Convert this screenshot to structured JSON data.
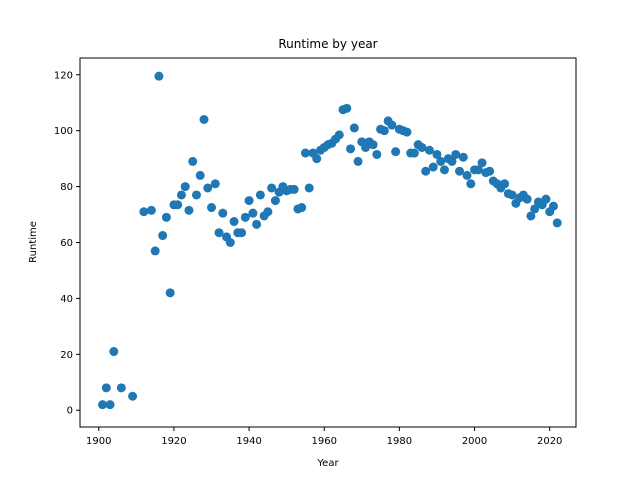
{
  "chart_data": {
    "type": "scatter",
    "title": "Runtime by year",
    "xlabel": "Year",
    "ylabel": "Runtime",
    "xlim": [
      1895,
      2027
    ],
    "ylim": [
      -6,
      126
    ],
    "xticks": [
      1900,
      1920,
      1940,
      1960,
      1980,
      2000,
      2020
    ],
    "yticks": [
      0,
      20,
      40,
      60,
      80,
      100,
      120
    ],
    "grid": false,
    "marker_color": "#1f77b4",
    "points": [
      [
        1901,
        2
      ],
      [
        1902,
        8
      ],
      [
        1903,
        2
      ],
      [
        1904,
        21
      ],
      [
        1906,
        8
      ],
      [
        1909,
        5
      ],
      [
        1912,
        71
      ],
      [
        1914,
        71.5
      ],
      [
        1915,
        57
      ],
      [
        1916,
        119.5
      ],
      [
        1917,
        62.5
      ],
      [
        1918,
        69
      ],
      [
        1919,
        42
      ],
      [
        1920,
        73.5
      ],
      [
        1921,
        73.5
      ],
      [
        1922,
        77
      ],
      [
        1923,
        80
      ],
      [
        1924,
        71.5
      ],
      [
        1925,
        89
      ],
      [
        1926,
        77
      ],
      [
        1927,
        84
      ],
      [
        1928,
        104
      ],
      [
        1929,
        79.5
      ],
      [
        1930,
        72.5
      ],
      [
        1931,
        81
      ],
      [
        1932,
        63.5
      ],
      [
        1933,
        70.5
      ],
      [
        1934,
        62
      ],
      [
        1935,
        60
      ],
      [
        1936,
        67.5
      ],
      [
        1937,
        63.5
      ],
      [
        1938,
        63.5
      ],
      [
        1939,
        69
      ],
      [
        1940,
        75
      ],
      [
        1941,
        70.5
      ],
      [
        1942,
        66.5
      ],
      [
        1943,
        77
      ],
      [
        1944,
        69.5
      ],
      [
        1945,
        71
      ],
      [
        1946,
        79.5
      ],
      [
        1947,
        75
      ],
      [
        1948,
        78
      ],
      [
        1949,
        80
      ],
      [
        1950,
        78.5
      ],
      [
        1951,
        79
      ],
      [
        1952,
        79
      ],
      [
        1953,
        72
      ],
      [
        1954,
        72.5
      ],
      [
        1955,
        92
      ],
      [
        1956,
        79.5
      ],
      [
        1957,
        92
      ],
      [
        1958,
        90
      ],
      [
        1959,
        93
      ],
      [
        1960,
        94
      ],
      [
        1961,
        95
      ],
      [
        1962,
        95.5
      ],
      [
        1963,
        97
      ],
      [
        1964,
        98.5
      ],
      [
        1965,
        107.5
      ],
      [
        1966,
        108
      ],
      [
        1967,
        93.5
      ],
      [
        1968,
        101
      ],
      [
        1969,
        89
      ],
      [
        1970,
        96
      ],
      [
        1971,
        94
      ],
      [
        1972,
        96
      ],
      [
        1973,
        95
      ],
      [
        1974,
        91.5
      ],
      [
        1975,
        100.5
      ],
      [
        1976,
        100
      ],
      [
        1977,
        103.5
      ],
      [
        1978,
        102
      ],
      [
        1979,
        92.5
      ],
      [
        1980,
        100.5
      ],
      [
        1981,
        100
      ],
      [
        1982,
        99.5
      ],
      [
        1983,
        92
      ],
      [
        1984,
        92
      ],
      [
        1985,
        95
      ],
      [
        1986,
        94
      ],
      [
        1987,
        85.5
      ],
      [
        1988,
        93
      ],
      [
        1989,
        87
      ],
      [
        1990,
        91.5
      ],
      [
        1991,
        89
      ],
      [
        1992,
        86
      ],
      [
        1993,
        90
      ],
      [
        1994,
        89
      ],
      [
        1995,
        91.5
      ],
      [
        1996,
        85.5
      ],
      [
        1997,
        90.5
      ],
      [
        1998,
        84
      ],
      [
        1999,
        81
      ],
      [
        2000,
        86
      ],
      [
        2001,
        86
      ],
      [
        2002,
        88.5
      ],
      [
        2003,
        85
      ],
      [
        2004,
        85.5
      ],
      [
        2005,
        82
      ],
      [
        2006,
        81
      ],
      [
        2007,
        79.5
      ],
      [
        2008,
        81
      ],
      [
        2009,
        77.5
      ],
      [
        2010,
        77
      ],
      [
        2011,
        74
      ],
      [
        2012,
        76
      ],
      [
        2013,
        77
      ],
      [
        2014,
        75.5
      ],
      [
        2015,
        69.5
      ],
      [
        2016,
        72
      ],
      [
        2017,
        74.5
      ],
      [
        2018,
        73.5
      ],
      [
        2019,
        75.5
      ],
      [
        2020,
        71
      ],
      [
        2021,
        73
      ],
      [
        2022,
        67
      ]
    ]
  }
}
